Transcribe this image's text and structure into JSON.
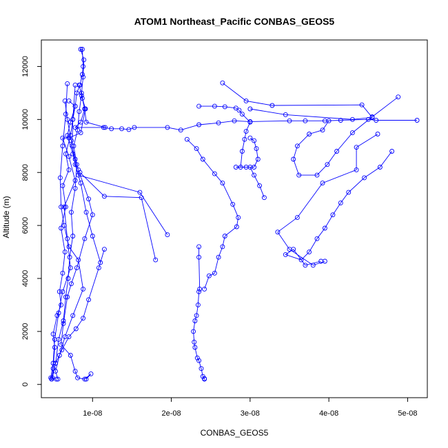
{
  "chart_data": {
    "type": "line",
    "title": "ATOM1 Northeast_Pacific CONBAS_GEOS5",
    "xlabel": "CONBAS_GEOS5",
    "ylabel": "Altitude (m)",
    "xlim": [
      3.5e-09,
      5.25e-08
    ],
    "ylim": [
      -500,
      13000
    ],
    "x_ticks": [
      {
        "value": 1e-08,
        "label": "1e-08"
      },
      {
        "value": 2e-08,
        "label": "2e-08"
      },
      {
        "value": 3e-08,
        "label": "3e-08"
      },
      {
        "value": 4e-08,
        "label": "4e-08"
      },
      {
        "value": 5e-08,
        "label": "5e-08"
      }
    ],
    "y_ticks": [
      {
        "value": 0,
        "label": "0"
      },
      {
        "value": 2000,
        "label": "2000"
      },
      {
        "value": 4000,
        "label": "4000"
      },
      {
        "value": 6000,
        "label": "6000"
      },
      {
        "value": 8000,
        "label": "8000"
      },
      {
        "value": 10000,
        "label": "10000"
      },
      {
        "value": 12000,
        "label": "12000"
      }
    ],
    "color": "#0000ff",
    "marker": "open-circle",
    "grid": false,
    "series": [
      {
        "points": [
          [
            4.8e-09,
            200
          ],
          [
            5e-09,
            600
          ],
          [
            5.2e-09,
            1400
          ],
          [
            5e-09,
            1900
          ],
          [
            5.5e-09,
            2600
          ],
          [
            6e-09,
            3000
          ],
          [
            5.8e-09,
            3500
          ],
          [
            6.2e-09,
            4200
          ],
          [
            6.5e-09,
            5000
          ],
          [
            6e-09,
            5900
          ],
          [
            6.6e-09,
            6700
          ],
          [
            6.2e-09,
            7500
          ],
          [
            7e-09,
            8100
          ],
          [
            6.6e-09,
            8700
          ],
          [
            7.2e-09,
            9400
          ],
          [
            7.5e-09,
            10000
          ],
          [
            7.8e-09,
            10500
          ],
          [
            8e-09,
            11000
          ],
          [
            8.4e-09,
            11300
          ],
          [
            8.7e-09,
            11700
          ],
          [
            8.8e-09,
            12000
          ],
          [
            8.7e-09,
            12650
          ],
          [
            8.5e-09,
            12650
          ],
          [
            8.9e-09,
            12250
          ],
          [
            8.8e-09,
            11600
          ],
          [
            8.6e-09,
            11000
          ],
          [
            9e-09,
            10400
          ],
          [
            8.5e-09,
            9900
          ],
          [
            7.8e-09,
            9700
          ],
          [
            1.14e-08,
            9700
          ],
          [
            1.24e-08,
            9650
          ],
          [
            1.37e-08,
            9650
          ],
          [
            1.46e-08,
            9620
          ],
          [
            1.53e-08,
            9700
          ],
          [
            1.95e-08,
            9700
          ],
          [
            2.12e-08,
            9600
          ],
          [
            2.35e-08,
            9800
          ],
          [
            2.6e-08,
            9870
          ],
          [
            2.8e-08,
            9950
          ],
          [
            3e-08,
            9920
          ],
          [
            3.5e-08,
            9950
          ],
          [
            3.7e-08,
            9950
          ],
          [
            3.95e-08,
            9950
          ],
          [
            4.15e-08,
            9970
          ],
          [
            4.5e-08,
            10000
          ],
          [
            4.6e-08,
            9970
          ],
          [
            5.12e-08,
            9970
          ]
        ]
      },
      {
        "points": [
          [
            4.9e-09,
            250
          ],
          [
            5.3e-09,
            800
          ],
          [
            5.7e-09,
            1700
          ],
          [
            6.3e-09,
            2400
          ],
          [
            6.6e-09,
            3300
          ],
          [
            6.9e-09,
            4000
          ],
          [
            7.1e-09,
            4800
          ],
          [
            7.5e-09,
            5600
          ],
          [
            7.3e-09,
            6500
          ],
          [
            7.8e-09,
            7400
          ],
          [
            8e-09,
            8300
          ],
          [
            7.6e-09,
            9000
          ],
          [
            8.1e-09,
            9600
          ],
          [
            8.3e-09,
            10300
          ],
          [
            8.6e-09,
            10900
          ],
          [
            9e-09,
            10400
          ],
          [
            9.2e-09,
            9900
          ],
          [
            1.16e-08,
            9700
          ]
        ]
      },
      {
        "points": [
          [
            2.65e-08,
            11380
          ],
          [
            2.95e-08,
            10700
          ],
          [
            3.28e-08,
            10530
          ],
          [
            4.42e-08,
            10550
          ],
          [
            4.55e-08,
            10080
          ],
          [
            4.3e-08,
            10000
          ],
          [
            3.45e-08,
            10180
          ],
          [
            3e-08,
            10400
          ]
        ]
      },
      {
        "points": [
          [
            2.35e-08,
            10500
          ],
          [
            2.55e-08,
            10500
          ],
          [
            2.68e-08,
            10480
          ],
          [
            2.82e-08,
            10430
          ],
          [
            2.86e-08,
            10350
          ],
          [
            2.9e-08,
            10200
          ],
          [
            3e-08,
            9900
          ],
          [
            2.95e-08,
            9550
          ],
          [
            2.93e-08,
            9250
          ],
          [
            2.9e-08,
            8800
          ],
          [
            2.88e-08,
            8200
          ],
          [
            2.95e-08,
            8200
          ],
          [
            3.05e-08,
            8200
          ],
          [
            3.1e-08,
            8500
          ],
          [
            3.08e-08,
            8900
          ],
          [
            3.05e-08,
            9200
          ],
          [
            3e-08,
            9300
          ]
        ]
      },
      {
        "points": [
          [
            2.2e-08,
            9250
          ],
          [
            2.32e-08,
            8900
          ],
          [
            2.4e-08,
            8500
          ],
          [
            2.55e-08,
            7950
          ],
          [
            2.65e-08,
            7600
          ],
          [
            2.78e-08,
            6800
          ],
          [
            2.85e-08,
            6300
          ],
          [
            2.83e-08,
            5950
          ],
          [
            2.68e-08,
            5600
          ],
          [
            2.65e-08,
            5200
          ],
          [
            2.6e-08,
            4800
          ],
          [
            2.55e-08,
            4200
          ],
          [
            2.48e-08,
            4100
          ],
          [
            2.42e-08,
            3600
          ]
        ]
      },
      {
        "points": [
          [
            2.35e-08,
            5200
          ],
          [
            2.35e-08,
            4800
          ],
          [
            2.36e-08,
            3600
          ],
          [
            2.35e-08,
            3500
          ],
          [
            2.34e-08,
            3000
          ],
          [
            2.32e-08,
            2600
          ],
          [
            2.3e-08,
            2400
          ],
          [
            2.28e-08,
            2000
          ],
          [
            2.29e-08,
            1600
          ],
          [
            2.3e-08,
            1400
          ],
          [
            2.33e-08,
            1000
          ],
          [
            2.35e-08,
            900
          ],
          [
            2.38e-08,
            600
          ],
          [
            2.4e-08,
            300
          ],
          [
            2.42e-08,
            200
          ],
          [
            2.42e-08,
            220
          ]
        ]
      },
      {
        "points": [
          [
            4.88e-08,
            10850
          ],
          [
            4.55e-08,
            10100
          ],
          [
            4.3e-08,
            9500
          ],
          [
            4.1e-08,
            8800
          ],
          [
            3.98e-08,
            8300
          ],
          [
            3.85e-08,
            7900
          ],
          [
            3.62e-08,
            7900
          ],
          [
            3.55e-08,
            8500
          ],
          [
            3.6e-08,
            9000
          ],
          [
            3.75e-08,
            9450
          ],
          [
            3.92e-08,
            9600
          ],
          [
            4e-08,
            9950
          ]
        ]
      },
      {
        "points": [
          [
            4.8e-08,
            8800
          ],
          [
            4.65e-08,
            8200
          ],
          [
            4.45e-08,
            7800
          ],
          [
            4.25e-08,
            7250
          ],
          [
            4.15e-08,
            6850
          ],
          [
            4.05e-08,
            6400
          ],
          [
            3.95e-08,
            5900
          ],
          [
            3.85e-08,
            5500
          ],
          [
            3.75e-08,
            5000
          ],
          [
            3.65e-08,
            4700
          ],
          [
            3.45e-08,
            4900
          ],
          [
            3.55e-08,
            5100
          ],
          [
            3.7e-08,
            4500
          ],
          [
            3.9e-08,
            4650
          ]
        ]
      },
      {
        "points": [
          [
            4.62e-08,
            9450
          ],
          [
            4.35e-08,
            8950
          ],
          [
            4.35e-08,
            8100
          ],
          [
            3.92e-08,
            7600
          ],
          [
            3.6e-08,
            6300
          ],
          [
            3.35e-08,
            5750
          ],
          [
            3.5e-08,
            5100
          ],
          [
            3.8e-08,
            4500
          ],
          [
            3.95e-08,
            4650
          ]
        ]
      },
      {
        "points": [
          [
            3.18e-08,
            7050
          ],
          [
            3.12e-08,
            7500
          ],
          [
            3.05e-08,
            7900
          ],
          [
            3e-08,
            8200
          ],
          [
            2.82e-08,
            8200
          ]
        ]
      },
      {
        "points": [
          [
            7e-09,
            10700
          ],
          [
            7.8e-09,
            10500
          ],
          [
            7.2e-09,
            9900
          ],
          [
            6.8e-09,
            9400
          ],
          [
            7.5e-09,
            8700
          ],
          [
            8.2e-09,
            7900
          ],
          [
            1.6e-08,
            7250
          ],
          [
            1.95e-08,
            5650
          ]
        ]
      },
      {
        "points": [
          [
            8.4e-09,
            8000
          ],
          [
            1.15e-08,
            7100
          ],
          [
            1.62e-08,
            7050
          ],
          [
            1.8e-08,
            4700
          ]
        ]
      },
      {
        "points": [
          [
            6.5e-09,
            10700
          ],
          [
            6.8e-09,
            10000
          ],
          [
            7.3e-09,
            9200
          ],
          [
            7.8e-09,
            8300
          ],
          [
            8.5e-09,
            7600
          ],
          [
            9.2e-09,
            6500
          ],
          [
            1e-08,
            5600
          ],
          [
            1.1e-08,
            4600
          ],
          [
            1.15e-08,
            5100
          ],
          [
            1.08e-08,
            4400
          ],
          [
            9.5e-09,
            3200
          ],
          [
            8.8e-09,
            2500
          ],
          [
            7.9e-09,
            2100
          ],
          [
            7e-09,
            1800
          ],
          [
            6.1e-09,
            1300
          ],
          [
            5.3e-09,
            800
          ],
          [
            4.8e-09,
            200
          ]
        ]
      },
      {
        "points": [
          [
            6.8e-09,
            11350
          ],
          [
            6.6e-09,
            10200
          ],
          [
            6.2e-09,
            9000
          ],
          [
            5.9e-09,
            7800
          ],
          [
            6e-09,
            6700
          ],
          [
            6.4e-09,
            6000
          ],
          [
            7e-09,
            5200
          ],
          [
            8.2e-09,
            4700
          ],
          [
            8.8e-09,
            3600
          ],
          [
            7.5e-09,
            2600
          ],
          [
            6.5e-09,
            1800
          ],
          [
            5.8e-09,
            1100
          ],
          [
            5.3e-09,
            500
          ],
          [
            5.6e-09,
            200
          ]
        ]
      },
      {
        "points": [
          [
            7.8e-09,
            11300
          ],
          [
            7.5e-09,
            10000
          ],
          [
            7.4e-09,
            9000
          ],
          [
            7.8e-09,
            8500
          ],
          [
            8.2e-09,
            8100
          ],
          [
            9.5e-09,
            7000
          ],
          [
            1e-08,
            6400
          ],
          [
            9e-09,
            5500
          ],
          [
            8e-09,
            4400
          ],
          [
            7.3e-09,
            3800
          ],
          [
            6.8e-09,
            3300
          ],
          [
            6.3e-09,
            2300
          ],
          [
            6e-09,
            1500
          ],
          [
            7.2e-09,
            1100
          ],
          [
            7.8e-09,
            500
          ],
          [
            8.1e-09,
            250
          ],
          [
            9e-09,
            200
          ],
          [
            9.8e-09,
            400
          ],
          [
            9.2e-09,
            200
          ]
        ]
      },
      {
        "points": [
          [
            8.3e-09,
            11300
          ],
          [
            8.7e-09,
            10800
          ],
          [
            9.1e-09,
            10400
          ],
          [
            8.5e-09,
            9500
          ],
          [
            7e-09,
            9300
          ],
          [
            6.2e-09,
            9300
          ],
          [
            7e-09,
            8600
          ],
          [
            7.8e-09,
            7700
          ],
          [
            6.4e-09,
            6700
          ],
          [
            6.8e-09,
            5500
          ],
          [
            7.2e-09,
            4400
          ],
          [
            6.2e-09,
            3500
          ],
          [
            5.7e-09,
            2700
          ],
          [
            5.2e-09,
            1700
          ],
          [
            5e-09,
            800
          ],
          [
            4.7e-09,
            250
          ],
          [
            5.4e-09,
            200
          ]
        ]
      }
    ]
  }
}
